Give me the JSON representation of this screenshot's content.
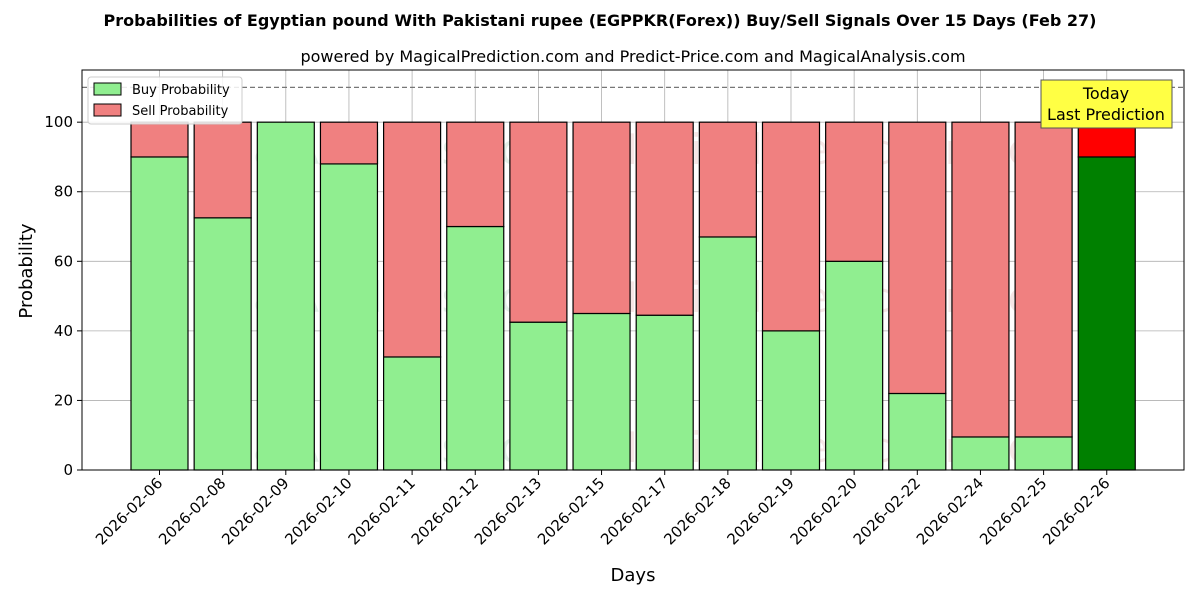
{
  "chart_data": {
    "type": "bar",
    "stacked": true,
    "title": "Probabilities of Egyptian pound With Pakistani rupee (EGPPKR(Forex)) Buy/Sell Signals Over 15 Days (Feb 27)",
    "subtitle": "powered by MagicalPrediction.com and Predict-Price.com and MagicalAnalysis.com",
    "xlabel": "Days",
    "ylabel": "Probability",
    "ylim": [
      0,
      115
    ],
    "yticks": [
      0,
      20,
      40,
      60,
      80,
      100
    ],
    "reference_line": 110,
    "grid": true,
    "legend_position": "top-left",
    "categories": [
      "2026-02-06",
      "2026-02-08",
      "2026-02-09",
      "2026-02-10",
      "2026-02-11",
      "2026-02-12",
      "2026-02-13",
      "2026-02-15",
      "2026-02-17",
      "2026-02-18",
      "2026-02-19",
      "2026-02-20",
      "2026-02-22",
      "2026-02-24",
      "2026-02-25",
      "2026-02-26"
    ],
    "series": [
      {
        "name": "Buy Probability",
        "color": "#90ee90",
        "highlight_color": "#008000",
        "values": [
          90,
          72.5,
          100,
          88,
          32.5,
          70,
          42.5,
          45,
          44.5,
          67,
          40,
          60,
          22,
          9.5,
          9.5,
          90
        ]
      },
      {
        "name": "Sell Probability",
        "color": "#f08080",
        "highlight_color": "#ff0000",
        "values": [
          10,
          27.5,
          0,
          12,
          67.5,
          30,
          57.5,
          55,
          55.5,
          33,
          60,
          40,
          78,
          90.5,
          90.5,
          10
        ]
      }
    ],
    "annotation": {
      "line1": "Today",
      "line2": "Last Prediction",
      "color": "#ffff44"
    },
    "watermarks": [
      "MagicalAnalysis.com",
      "MagicalPrediction.com"
    ]
  }
}
